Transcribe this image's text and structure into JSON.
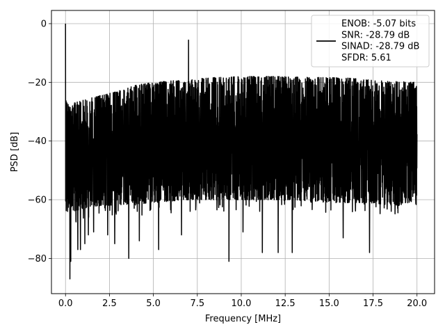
{
  "chart_data": {
    "type": "line",
    "title": "",
    "xlabel": "Frequency [MHz]",
    "ylabel": "PSD [dB]",
    "xlim": [
      -0.8,
      21.0
    ],
    "ylim": [
      -92,
      4.5
    ],
    "x_ticks": [
      0.0,
      2.5,
      5.0,
      7.5,
      10.0,
      12.5,
      15.0,
      17.5,
      20.0
    ],
    "x_tick_labels": [
      "0.0",
      "2.5",
      "5.0",
      "7.5",
      "10.0",
      "12.5",
      "15.0",
      "17.5",
      "20.0"
    ],
    "y_ticks": [
      0,
      -20,
      -40,
      -60,
      -80
    ],
    "y_tick_labels": [
      "0",
      "−20",
      "−40",
      "−60",
      "−80"
    ],
    "grid": true,
    "legend_position": "top-right",
    "series": [
      {
        "name": "ENOB: -5.07 bits\nSNR: -28.79 dB\nSINAD: -28.79 dB\nSFDR: 5.61",
        "color": "#000000",
        "description_of_shape": "dense noise PSD band",
        "upper_envelope": {
          "x": [
            0.0,
            0.2,
            0.5,
            1.0,
            2.0,
            3.0,
            4.0,
            5.0,
            6.0,
            7.0,
            8.0,
            10.0,
            12.0,
            14.0,
            16.0,
            18.0,
            20.0
          ],
          "y": [
            -26,
            -28,
            -27,
            -26,
            -24.5,
            -23,
            -21,
            -20,
            -19.5,
            -19,
            -18.5,
            -18,
            -18,
            -18.3,
            -18.5,
            -19.5,
            -20
          ]
        },
        "lower_envelope": {
          "x": [
            0.0,
            0.5,
            1.0,
            2.0,
            3.0,
            5.0,
            7.0,
            9.0,
            11.0,
            13.0,
            15.0,
            17.0,
            19.0,
            20.0
          ],
          "y": [
            -62,
            -64,
            -63,
            -62,
            -62,
            -61,
            -60,
            -60,
            -60,
            -60,
            -61,
            -61,
            -62,
            -60
          ]
        },
        "spikes": [
          {
            "x": 0.0,
            "y": 0.0
          },
          {
            "x": 7.0,
            "y": -5.6
          },
          {
            "x": 0.12,
            "y": -64
          },
          {
            "x": 0.25,
            "y": -87
          },
          {
            "x": 0.3,
            "y": -81
          },
          {
            "x": 0.7,
            "y": -77
          },
          {
            "x": 0.85,
            "y": -77
          },
          {
            "x": 1.1,
            "y": -75
          },
          {
            "x": 1.3,
            "y": -72
          },
          {
            "x": 1.6,
            "y": -71
          },
          {
            "x": 2.4,
            "y": -72
          },
          {
            "x": 2.8,
            "y": -75
          },
          {
            "x": 3.6,
            "y": -80
          },
          {
            "x": 4.2,
            "y": -74
          },
          {
            "x": 5.3,
            "y": -77
          },
          {
            "x": 6.6,
            "y": -72
          },
          {
            "x": 9.3,
            "y": -81
          },
          {
            "x": 10.1,
            "y": -71
          },
          {
            "x": 11.2,
            "y": -78
          },
          {
            "x": 12.1,
            "y": -78
          },
          {
            "x": 12.9,
            "y": -78
          },
          {
            "x": 15.8,
            "y": -73
          },
          {
            "x": 17.3,
            "y": -78
          }
        ]
      }
    ]
  }
}
